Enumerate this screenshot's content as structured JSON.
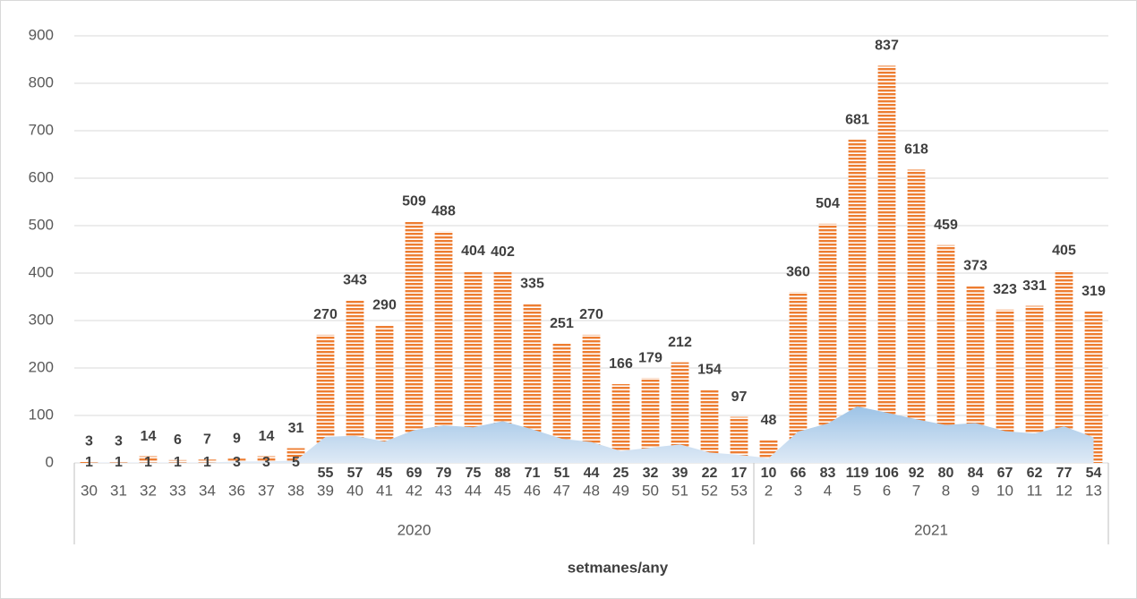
{
  "chart_data": {
    "type": "bar",
    "x_label": "setmanes/any",
    "groups": [
      {
        "name": "2020",
        "categories": [
          "30",
          "31",
          "32",
          "33",
          "34",
          "36",
          "37",
          "38",
          "39",
          "40",
          "41",
          "42",
          "43",
          "44",
          "45",
          "46",
          "47",
          "48",
          "49",
          "50",
          "51",
          "52",
          "53"
        ]
      },
      {
        "name": "2021",
        "categories": [
          "2",
          "3",
          "4",
          "5",
          "6",
          "7",
          "8",
          "9",
          "10",
          "11",
          "12",
          "13"
        ]
      }
    ],
    "series": [
      {
        "type": "bar",
        "color": "#ed7d31",
        "values": [
          3,
          3,
          14,
          6,
          7,
          9,
          14,
          31,
          270,
          343,
          290,
          509,
          488,
          404,
          402,
          335,
          251,
          270,
          166,
          179,
          212,
          154,
          97,
          48,
          360,
          504,
          681,
          837,
          618,
          459,
          373,
          323,
          331,
          405,
          319
        ]
      },
      {
        "type": "area",
        "color": "#9dc3e6",
        "values": [
          1,
          1,
          1,
          1,
          1,
          3,
          3,
          5,
          55,
          57,
          45,
          69,
          79,
          75,
          88,
          71,
          51,
          44,
          25,
          32,
          39,
          22,
          17,
          10,
          66,
          83,
          119,
          106,
          92,
          80,
          84,
          67,
          62,
          77,
          54
        ]
      }
    ],
    "ylim": [
      0,
      900
    ],
    "yticks": [
      0,
      100,
      200,
      300,
      400,
      500,
      600,
      700,
      800,
      900
    ],
    "grid": true
  }
}
